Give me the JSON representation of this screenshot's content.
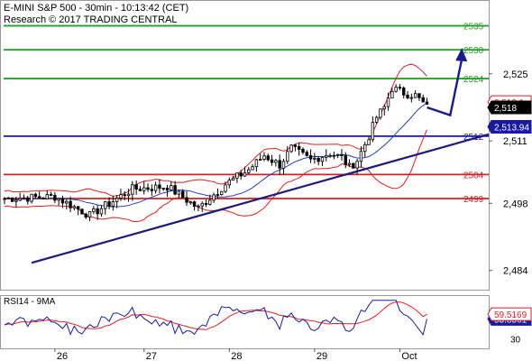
{
  "header": {
    "title": "E-MINI S&P 500 - 30min - 10:13:42 (CET)",
    "copyright": "Research © 2017 TRADING CENTRAL"
  },
  "rsi_title": "RSI14 - 9MA",
  "colors": {
    "resistance": "#2a9d2a",
    "support": "#d42020",
    "pivot": "#1a1aa0",
    "trendline": "#1a1a80",
    "bollinger": "#e02020",
    "moving_average": "#2040c0",
    "candles": "#000000",
    "arrow": "#1a1a90",
    "last_price_badge": "#000000",
    "pivot_badge": "#1a1aa0",
    "bb_badge": "#d42020"
  },
  "chart_data": [
    {
      "type": "candlestick",
      "title": "E-MINI S&P 500 - 30min",
      "x_tick_labels": [
        "26",
        "27",
        "28",
        "29",
        "Oct"
      ],
      "y_tick_labels": [
        "2,525",
        "2,511",
        "2,498",
        "2,484"
      ],
      "ylim": [
        2480,
        2540
      ],
      "levels": [
        {
          "label": "2535",
          "value": 2535,
          "role": "resistance"
        },
        {
          "label": "2530",
          "value": 2530,
          "role": "resistance"
        },
        {
          "label": "2524",
          "value": 2524,
          "role": "resistance"
        },
        {
          "label": "2512",
          "value": 2512,
          "role": "pivot"
        },
        {
          "label": "2504",
          "value": 2504,
          "role": "support"
        },
        {
          "label": "2499",
          "value": 2499,
          "role": "support"
        }
      ],
      "price_badges": [
        {
          "label": "2,519.1",
          "value": 2519.1,
          "role": "bb"
        },
        {
          "label": "2,518",
          "value": 2518,
          "role": "last_price"
        },
        {
          "label": "2,513.94",
          "value": 2513.94,
          "role": "pivot"
        }
      ],
      "trendline": [
        [
          0,
          2485.6
        ],
        [
          95,
          2512
        ]
      ],
      "forecast_path": [
        [
          0,
          2499
        ],
        [
          13,
          2499.4
        ],
        [
          22,
          2495.5
        ],
        [
          33,
          2501
        ],
        [
          42,
          2501.5
        ],
        [
          50,
          2497
        ],
        [
          57,
          2502
        ],
        [
          63,
          2505
        ],
        [
          67,
          2508
        ],
        [
          71,
          2506
        ],
        [
          74,
          2509.5
        ],
        [
          79,
          2507
        ],
        [
          84,
          2508.5
        ],
        [
          87,
          2507.5
        ],
        [
          89,
          2505.5
        ],
        [
          91,
          2507
        ],
        [
          94,
          2512
        ],
        [
          96,
          2516
        ],
        [
          98,
          2518
        ],
        [
          100,
          2522
        ],
        [
          103,
          2521
        ],
        [
          106,
          2520.5
        ],
        [
          109,
          2518
        ]
      ],
      "forecast_arrow": [
        [
          109,
          2518
        ],
        [
          115,
          2517.5
        ],
        [
          118,
          2530
        ]
      ],
      "candle_count": 110
    },
    {
      "type": "line",
      "title": "RSI14 - 9MA",
      "series": [
        {
          "name": "RSI14",
          "value_label": "53.8561",
          "last": 53.8561
        },
        {
          "name": "9MA",
          "value_label": "59.5169",
          "last": 59.5169
        }
      ],
      "ylim": [
        20,
        80
      ]
    }
  ]
}
